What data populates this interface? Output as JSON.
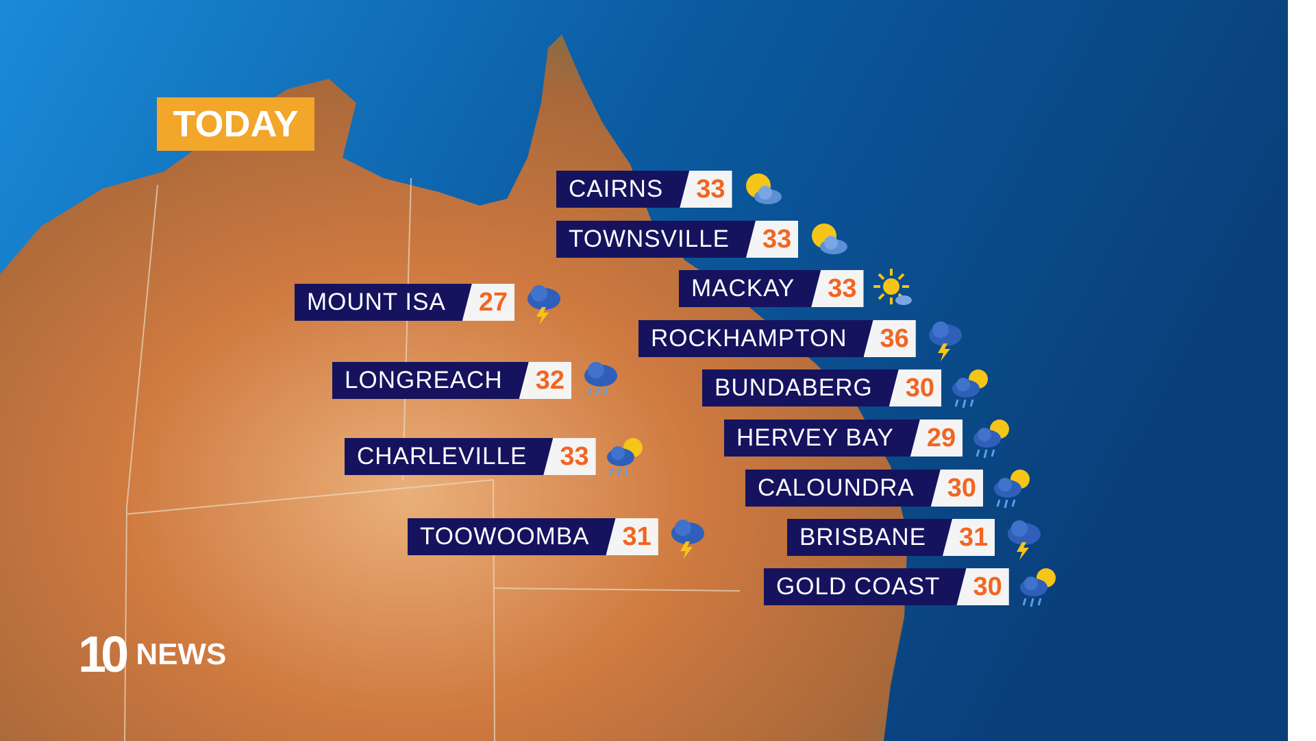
{
  "header": {
    "title": "TODAY"
  },
  "brand": {
    "logo_number": "10",
    "logo_text": "NEWS"
  },
  "colors": {
    "label_bg": "#15135e",
    "temp_text": "#f26522",
    "title_bg": "#f2a62a",
    "ocean": "#0b4f8f",
    "land": "#c8743a"
  },
  "cities": [
    {
      "name": "CAIRNS",
      "temp": "33",
      "icon": "partly-cloudy-icon"
    },
    {
      "name": "TOWNSVILLE",
      "temp": "33",
      "icon": "partly-cloudy-icon"
    },
    {
      "name": "MACKAY",
      "temp": "33",
      "icon": "mostly-sunny-icon"
    },
    {
      "name": "ROCKHAMPTON",
      "temp": "36",
      "icon": "thunderstorm-icon"
    },
    {
      "name": "BUNDABERG",
      "temp": "30",
      "icon": "sun-showers-icon"
    },
    {
      "name": "HERVEY BAY",
      "temp": "29",
      "icon": "sun-showers-icon"
    },
    {
      "name": "CALOUNDRA",
      "temp": "30",
      "icon": "sun-showers-icon"
    },
    {
      "name": "BRISBANE",
      "temp": "31",
      "icon": "thunderstorm-icon"
    },
    {
      "name": "GOLD COAST",
      "temp": "30",
      "icon": "sun-showers-icon"
    },
    {
      "name": "MOUNT ISA",
      "temp": "27",
      "icon": "thunderstorm-icon"
    },
    {
      "name": "LONGREACH",
      "temp": "32",
      "icon": "showers-icon"
    },
    {
      "name": "CHARLEVILLE",
      "temp": "33",
      "icon": "sun-showers-icon"
    },
    {
      "name": "TOOWOOMBA",
      "temp": "31",
      "icon": "thunderstorm-icon"
    }
  ]
}
